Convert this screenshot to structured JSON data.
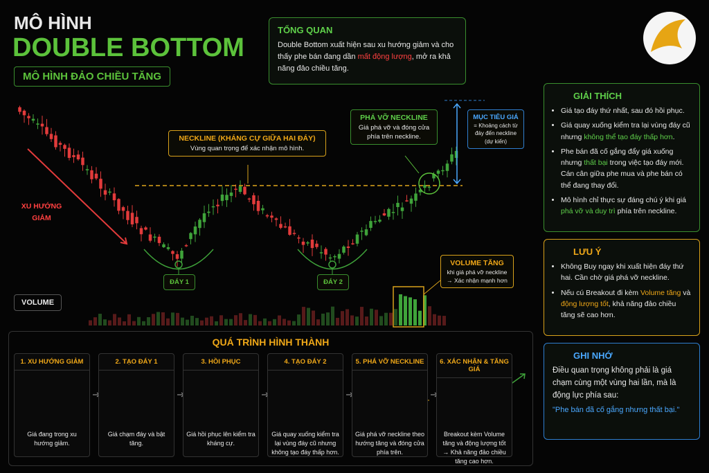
{
  "header": {
    "title_top": "MÔ HÌNH",
    "title_main": "DOUBLE BOTTOM",
    "subtitle": "MÔ HÌNH ĐẢO CHIỀU TĂNG"
  },
  "overview": {
    "title": "TỔNG QUAN",
    "parts": [
      "Double Bottom xuất hiện sau xu hướng giảm và cho thấy phe bán đang dần ",
      "mất động lượng",
      ", mở ra khả năng đảo chiều tăng."
    ]
  },
  "chart": {
    "downtrend": "XU HƯỚNG GIẢM",
    "neckline_title": "NECKLINE (KHÁNG CỰ GIỮA HAI ĐÁY)",
    "neckline_text": "Vùng quan trọng để xác nhận mô hình.",
    "breakout_title": "PHÁ VỠ NECKLINE",
    "breakout_text": "Giá phá vỡ và đóng cửa phía trên neckline.",
    "target_title": "MỤC TIÊU GIÁ",
    "target_text": "= Khoảng cách từ đáy đến neckline (dự kiến)",
    "bottom1": "ĐÁY 1",
    "bottom2": "ĐÁY 2",
    "volume_title": "VOLUME TĂNG",
    "volume_text": "khi giá phá vỡ neckline → Xác nhận mạnh hơn",
    "volume_label": "VOLUME"
  },
  "explain": {
    "title": "GIẢI THÍCH",
    "items": [
      [
        "Giá tạo đáy thứ nhất, sau đó hồi phục."
      ],
      [
        "Giá quay xuống kiểm tra lại vùng đáy cũ nhưng ",
        "không thể tạo đáy thấp hơn",
        "."
      ],
      [
        "Phe bán đã cố gắng đẩy giá xuống nhưng ",
        "thất bại",
        " trong việc tạo đáy mới. Cán cân giữa phe mua và phe bán có thể đang thay đổi."
      ],
      [
        "Mô hình chỉ thực sự đáng chú ý khi giá ",
        "phá vỡ và duy trì",
        " phía trên neckline."
      ]
    ]
  },
  "warning": {
    "title": "LƯU Ý",
    "items": [
      [
        "Không Buy ngay khi xuất hiện đáy thứ hai. Cần chờ giá phá vỡ neckline."
      ],
      [
        "Nếu cú Breakout đi kèm ",
        "Volume tăng",
        " và ",
        "động lượng tốt",
        ", khả năng đảo chiều tăng sẽ cao hơn."
      ]
    ]
  },
  "remember": {
    "title": "GHI NHỚ",
    "text": "Điều quan trọng không phải là giá chạm cùng một vùng hai lần, mà là động lực phía sau:",
    "quote": "\"Phe bán đã cố gắng nhưng thất bại.\""
  },
  "process": {
    "title": "QUÁ TRÌNH HÌNH THÀNH",
    "steps": [
      {
        "title": "1. XU HƯỚNG GIẢM",
        "text": "Giá đang trong xu hướng giảm."
      },
      {
        "title": "2. TẠO ĐÁY 1",
        "text": "Giá chạm đáy và bật tăng."
      },
      {
        "title": "3. HỒI PHỤC",
        "text": "Giá hồi phục lên kiểm tra kháng cự."
      },
      {
        "title": "4. TẠO ĐÁY 2",
        "text": "Giá quay xuống kiểm tra lại vùng đáy cũ nhưng không tạo đáy thấp hơn."
      },
      {
        "title": "5. PHÁ VỠ NECKLINE",
        "text": "Giá phá vỡ neckline theo hướng tăng và đóng cửa phía trên."
      },
      {
        "title": "6. XÁC NHẬN & TĂNG GIÁ",
        "text": "Breakout kèm Volume tăng và động lượng tốt → Khả năng đảo chiều tăng cao hơn."
      }
    ]
  }
}
